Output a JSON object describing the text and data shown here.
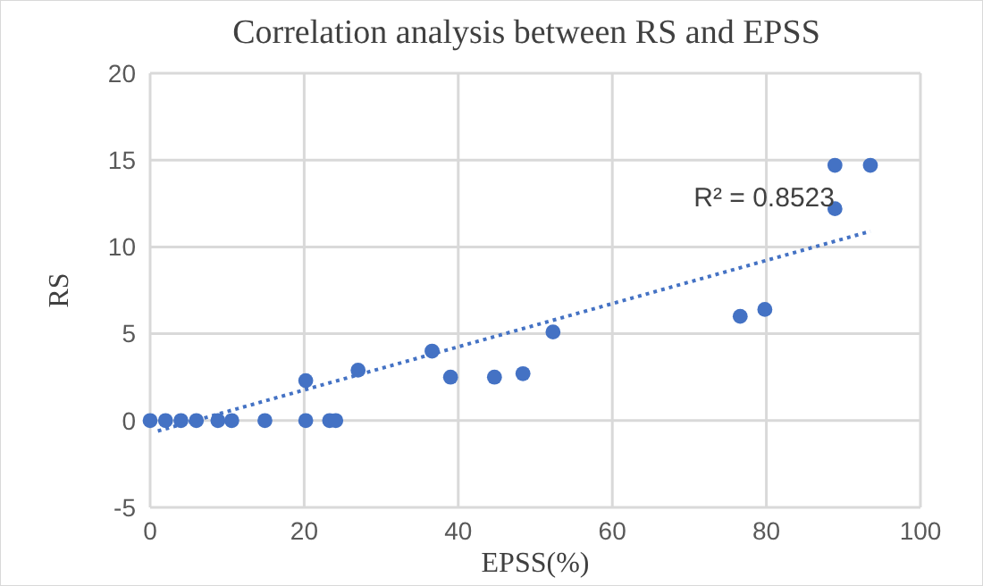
{
  "chart_data": {
    "type": "scatter",
    "title": "Correlation analysis between RS and EPSS",
    "xlabel": "EPSS(%)",
    "ylabel": "RS",
    "xlim": [
      0,
      100
    ],
    "xticks": [
      0,
      20,
      40,
      60,
      80,
      100
    ],
    "ylim": [
      -5,
      20
    ],
    "yticks": [
      -5,
      0,
      5,
      10,
      15,
      20
    ],
    "grid": true,
    "marker": "circle",
    "annotations": [
      "R² = 0.8523"
    ],
    "series": [
      {
        "color": "#4472c4",
        "x": [
          0,
          2,
          4,
          6,
          8.8,
          10.6,
          14.9,
          20.2,
          23.3,
          24.1,
          20.2,
          27.0,
          36.6,
          39.0,
          44.7,
          48.4,
          52.3,
          76.6,
          79.8,
          88.9,
          88.9,
          93.5
        ],
        "values": [
          0,
          0,
          0,
          0,
          0,
          0,
          0,
          0,
          0,
          0,
          2.3,
          2.9,
          4.0,
          2.5,
          2.5,
          2.7,
          5.1,
          6.0,
          6.4,
          12.2,
          14.7,
          14.7
        ]
      },
      {
        "type": "line",
        "color": "#4472c4",
        "line_style": "dotted",
        "marker": "none",
        "x": [
          1,
          93.5
        ],
        "values": [
          -0.6,
          10.9
        ]
      }
    ]
  }
}
